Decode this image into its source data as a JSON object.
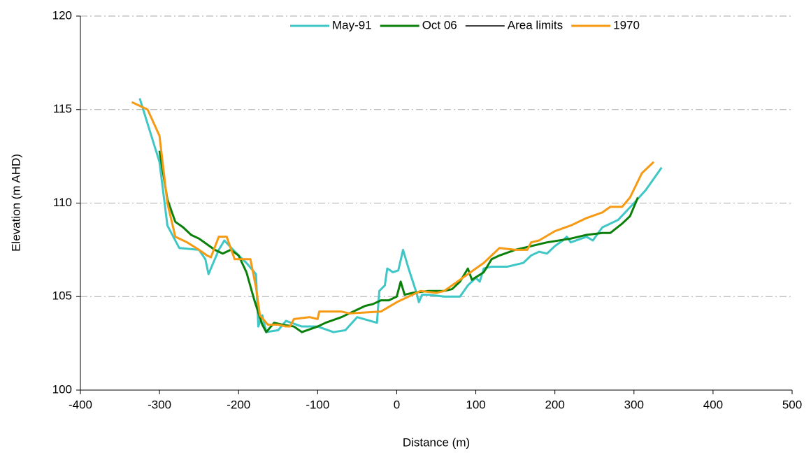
{
  "chart_data": {
    "type": "line",
    "xlabel": "Distance (m)",
    "ylabel": "Elevation  (m AHD)",
    "xlim": [
      -400,
      500
    ],
    "xticks": [
      -400,
      -300,
      -200,
      -100,
      0,
      100,
      200,
      300,
      400,
      500
    ],
    "ylim": [
      100,
      120
    ],
    "yticks": [
      100,
      105,
      110,
      115,
      120
    ],
    "grid": true,
    "legend": "top",
    "series": [
      {
        "name": "May-91",
        "color": "#3fc6c6",
        "x": [
          -325,
          -300,
          -290,
          -275,
          -250,
          -242,
          -238,
          -225,
          -218,
          -200,
          -190,
          -178,
          -175,
          -170,
          -165,
          -150,
          -140,
          -120,
          -100,
          -80,
          -65,
          -50,
          -25,
          -22,
          -15,
          -12,
          -8,
          -5,
          2,
          8,
          15,
          25,
          28,
          32,
          40,
          60,
          80,
          90,
          100,
          105,
          110,
          120,
          140,
          160,
          170,
          180,
          190,
          200,
          210,
          215,
          220,
          240,
          248,
          260,
          280,
          300,
          315,
          335
        ],
        "values": [
          115.6,
          112.2,
          108.8,
          107.6,
          107.5,
          107.0,
          106.2,
          107.5,
          108.0,
          107.2,
          106.8,
          106.2,
          103.4,
          104.0,
          103.1,
          103.2,
          103.7,
          103.4,
          103.4,
          103.1,
          103.2,
          103.9,
          103.6,
          105.3,
          105.6,
          106.5,
          106.4,
          106.3,
          106.4,
          107.5,
          106.5,
          105.2,
          104.7,
          105.1,
          105.1,
          105.0,
          105.0,
          105.6,
          106.0,
          105.8,
          106.5,
          106.6,
          106.6,
          106.8,
          107.2,
          107.4,
          107.3,
          107.7,
          108.0,
          108.2,
          107.9,
          108.2,
          108.0,
          108.7,
          109.1,
          110.0,
          110.7,
          111.9
        ]
      },
      {
        "name": "Oct 06",
        "color": "#0a800a",
        "x": [
          -300,
          -290,
          -280,
          -270,
          -260,
          -250,
          -240,
          -230,
          -220,
          -210,
          -200,
          -190,
          -180,
          -170,
          -165,
          -155,
          -145,
          -130,
          -120,
          -100,
          -90,
          -70,
          -60,
          -50,
          -40,
          -30,
          -20,
          -10,
          0,
          5,
          10,
          20,
          40,
          60,
          70,
          80,
          90,
          95,
          110,
          120,
          130,
          150,
          170,
          190,
          220,
          240,
          260,
          270,
          285,
          295,
          305
        ],
        "values": [
          112.8,
          110.2,
          109.0,
          108.7,
          108.3,
          108.1,
          107.8,
          107.5,
          107.3,
          107.5,
          107.2,
          106.3,
          104.8,
          103.5,
          103.1,
          103.6,
          103.5,
          103.4,
          103.1,
          103.4,
          103.6,
          103.9,
          104.1,
          104.3,
          104.5,
          104.6,
          104.8,
          104.8,
          105.0,
          105.8,
          105.1,
          105.2,
          105.3,
          105.3,
          105.4,
          105.8,
          106.5,
          105.9,
          106.3,
          107.0,
          107.2,
          107.5,
          107.7,
          107.9,
          108.1,
          108.3,
          108.4,
          108.4,
          108.9,
          109.3,
          110.3
        ]
      },
      {
        "name": "Area limits",
        "color": "#000000",
        "x": [],
        "values": []
      },
      {
        "name": "1970",
        "color": "#f59a12",
        "x": [
          -335,
          -315,
          -300,
          -290,
          -280,
          -265,
          -250,
          -240,
          -235,
          -225,
          -215,
          -205,
          -195,
          -185,
          -178,
          -173,
          -163,
          -150,
          -140,
          -135,
          -130,
          -110,
          -100,
          -98,
          -70,
          -60,
          -20,
          0,
          20,
          30,
          50,
          60,
          70,
          90,
          110,
          130,
          150,
          165,
          170,
          180,
          200,
          220,
          240,
          260,
          270,
          285,
          295,
          310,
          325
        ],
        "values": [
          115.4,
          115.0,
          113.6,
          110.0,
          108.2,
          107.9,
          107.5,
          107.2,
          107.1,
          108.2,
          108.2,
          107.0,
          107.0,
          107.0,
          105.5,
          104.0,
          103.5,
          103.5,
          103.4,
          103.4,
          103.8,
          103.9,
          103.8,
          104.2,
          104.2,
          104.1,
          104.2,
          104.7,
          105.1,
          105.3,
          105.2,
          105.3,
          105.6,
          106.2,
          106.8,
          107.6,
          107.5,
          107.5,
          107.9,
          108.0,
          108.5,
          108.8,
          109.2,
          109.5,
          109.8,
          109.8,
          110.3,
          111.6,
          112.2
        ]
      }
    ]
  }
}
